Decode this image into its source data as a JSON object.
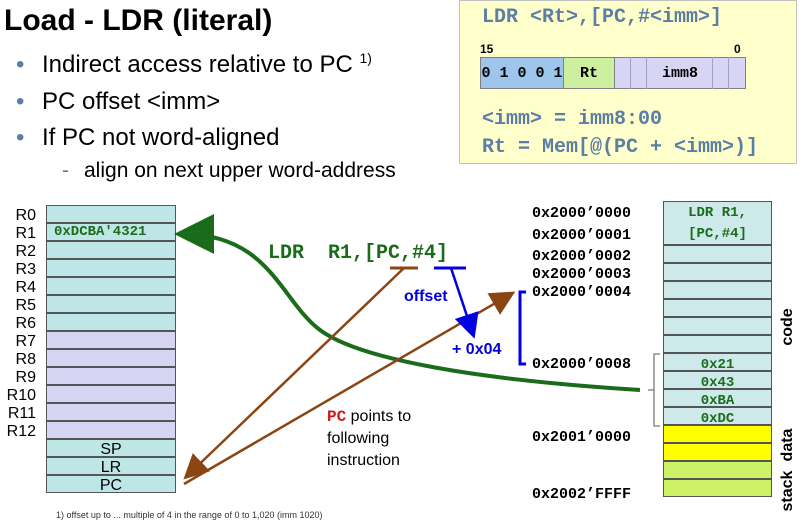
{
  "slide": {
    "title": "Load - LDR (literal)",
    "bullets": [
      {
        "text": "Indirect access relative to PC",
        "sup": "1)"
      },
      {
        "text": "PC offset <imm>"
      },
      {
        "text": "If PC not word-aligned"
      }
    ],
    "sub_bullet": "align on next upper word-address"
  },
  "encoding": {
    "syntax": "LDR <Rt>,[PC,#<imm>]",
    "bit_high": "15",
    "bit_low": "0",
    "fields": [
      "0 1 0 0 1",
      "Rt",
      "imm8"
    ],
    "imm_def": "<imm> = imm8:00",
    "semantics": "Rt = Mem[@(PC + <imm>)]"
  },
  "registers": {
    "names": [
      "R0",
      "R1",
      "R2",
      "R3",
      "R4",
      "R5",
      "R6",
      "R7",
      "R8",
      "R9",
      "R10",
      "R11",
      "R12"
    ],
    "r1_value": "0xDCBA'4321",
    "special": [
      "SP",
      "LR",
      "PC"
    ]
  },
  "instruction": {
    "mnemonic": "LDR",
    "operands": "R1,[PC,#4]"
  },
  "annotations": {
    "offset": "offset",
    "plus": "+ 0x04",
    "pc_word": "PC",
    "pc_rest": "points to",
    "pc_line2": "following",
    "pc_line3": "instruction"
  },
  "memory": {
    "addresses": [
      "0x2000’0000",
      "0x2000’0001",
      "0x2000’0002",
      "0x2000’0003",
      "0x2000’0004",
      "0x2000’0008",
      "0x2001’0000",
      "0x2002’FFFF"
    ],
    "code_cell": {
      "line1": "LDR  R1,",
      "line2": "[PC,#4]"
    },
    "data_bytes": [
      "0x21",
      "0x43",
      "0xBA",
      "0xDC"
    ],
    "labels": {
      "code": "code",
      "stack": "stack",
      "data": "data"
    }
  },
  "colors": {
    "reg": "#bfe6e6",
    "reg_hi": "#d6d6f2",
    "mem": "#cde9ea",
    "stack": "#ffff00",
    "data": "#cdf266",
    "green": "#1a6b1a",
    "blue": "#0000e0",
    "brown": "#8b4513",
    "red": "#d01818"
  },
  "footnote": "1) offset up to ... multiple of 4 in the range of 0 to 1,020 (imm 1020)"
}
